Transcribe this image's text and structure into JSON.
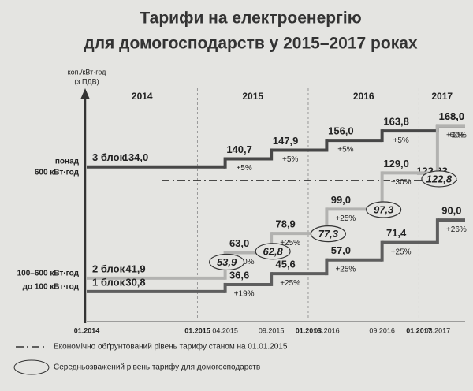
{
  "chart_data": {
    "type": "step",
    "title": [
      "Тарифи на електроенергію",
      "для домогосподарств у 2015–2017 роках"
    ],
    "y_label": [
      "коп./кВт·год",
      "(з ПДВ)"
    ],
    "years": [
      "2014",
      "2015",
      "2016",
      "2017"
    ],
    "dates": [
      "01.2014",
      "01.2015",
      "04.2015",
      "09.2015",
      "01.2016",
      "03.2016",
      "09.2016",
      "01.2017",
      "03.2017"
    ],
    "ylim": [
      0,
      190
    ],
    "series": [
      {
        "name": "3 блок",
        "range": [
          "понад",
          "600 кВт·год"
        ],
        "color": "#474747",
        "x": [
          "01.2014",
          "04.2015",
          "09.2015",
          "03.2016",
          "09.2016",
          "03.2017"
        ],
        "values": [
          134.0,
          140.7,
          147.9,
          156.0,
          163.8,
          168.0
        ],
        "value_labels": [
          "134,0",
          "140,7",
          "147,9",
          "156,0",
          "163,8",
          "168,0"
        ],
        "changes": [
          null,
          "+5%",
          "+5%",
          "+5%",
          "+5%",
          "+3%"
        ]
      },
      {
        "name": "2 блок",
        "range": [
          "100–600 кВт·год"
        ],
        "color": "#b2b2b0",
        "x": [
          "01.2014",
          "04.2015",
          "09.2015",
          "03.2016",
          "09.2016",
          "03.2017"
        ],
        "values": [
          41.9,
          63.0,
          78.9,
          99.0,
          129.0,
          168.0
        ],
        "value_labels": [
          "41,9",
          "63,0",
          "78,9",
          "99,0",
          "129,0",
          "168,0"
        ],
        "changes": [
          null,
          "+50%",
          "+25%",
          "+25%",
          "+30%",
          "+30%"
        ]
      },
      {
        "name": "1 блок",
        "range": [
          "до 100 кВт·год"
        ],
        "color": "#5e5e5e",
        "x": [
          "01.2014",
          "04.2015",
          "09.2015",
          "03.2016",
          "09.2016",
          "03.2017"
        ],
        "values": [
          30.8,
          36.6,
          45.6,
          57.0,
          71.4,
          90.0
        ],
        "value_labels": [
          "30,8",
          "36,6",
          "45,6",
          "57,0",
          "71,4",
          "90,0"
        ],
        "changes": [
          null,
          "+19%",
          "+25%",
          "+25%",
          "+25%",
          "+26%"
        ]
      }
    ],
    "weighted_average": {
      "name": "Середньозважений рівень тарифу для домогосподарств",
      "x": [
        "04.2015",
        "09.2015",
        "03.2016",
        "09.2016",
        "03.2017"
      ],
      "values": [
        53.9,
        62.8,
        77.3,
        97.3,
        122.8
      ],
      "value_labels": [
        "53,9",
        "62,8",
        "77,3",
        "97,3",
        "122,8"
      ]
    },
    "economic_level": {
      "name": "Економічно обґрунтований рівень тарифу станом на 01.01.2015",
      "value": 122.83,
      "value_label": "122,83"
    }
  }
}
